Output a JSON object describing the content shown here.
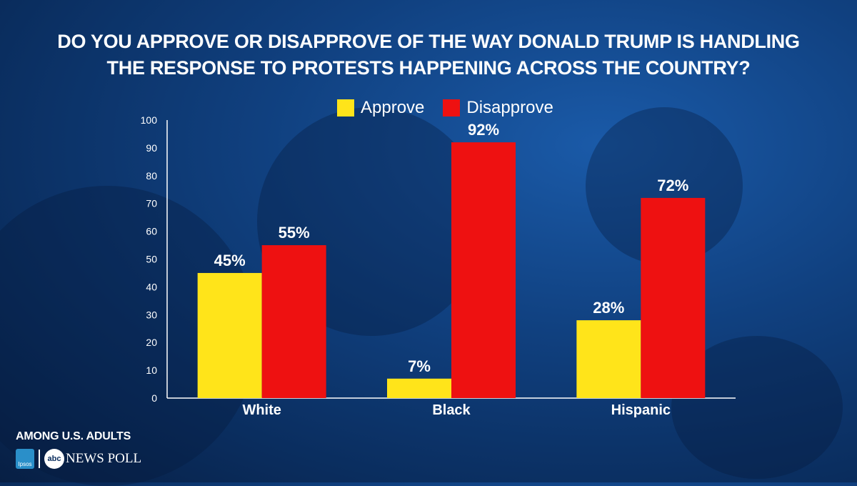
{
  "header": {
    "title_line1": "DO YOU APPROVE OR DISAPPROVE OF THE WAY DONALD TRUMP IS HANDLING",
    "title_line2": "THE RESPONSE TO PROTESTS HAPPENING ACROSS THE COUNTRY?"
  },
  "legend": {
    "approve_label": "Approve",
    "disapprove_label": "Disapprove"
  },
  "colors": {
    "approve": "#ffe41a",
    "disapprove": "#ee1111",
    "axis": "#ffffff"
  },
  "footer": {
    "population": "AMONG U.S. ADULTS",
    "ipsos_label": "Ipsos",
    "abc_label": "abc",
    "poll_label": "NEWS POLL"
  },
  "chart_data": {
    "type": "bar",
    "title": "Do you approve or disapprove of the way Donald Trump is handling the response to protests happening across the country?",
    "categories": [
      "White",
      "Black",
      "Hispanic"
    ],
    "series": [
      {
        "name": "Approve",
        "values": [
          45,
          7,
          28
        ],
        "labels": [
          "45%",
          "7%",
          "28%"
        ]
      },
      {
        "name": "Disapprove",
        "values": [
          55,
          92,
          72
        ],
        "labels": [
          "55%",
          "92%",
          "72%"
        ]
      }
    ],
    "ylim": [
      0,
      100
    ],
    "yticks": [
      0,
      10,
      20,
      30,
      40,
      50,
      60,
      70,
      80,
      90,
      100
    ],
    "xlabel": "",
    "ylabel": "",
    "legend_position": "top-center",
    "grid": false
  }
}
